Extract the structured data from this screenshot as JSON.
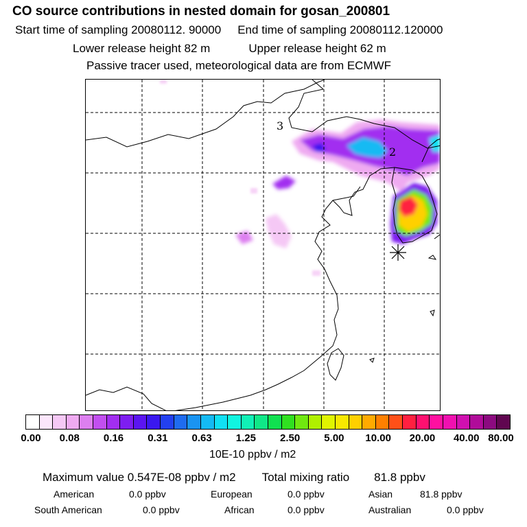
{
  "header": {
    "title": "CO  source contributions in nested domain for gosan_200801",
    "start_label": "Start time of sampling 20080112. 90000",
    "end_label": "End time of sampling 20080112.120000",
    "lower_label": "Lower release height   82 m",
    "upper_label": "Upper release height   62 m",
    "tracer_note": "Passive tracer used, meteorological data are from ECMWF"
  },
  "map": {
    "labels": [
      "3",
      "2"
    ],
    "marker": "receptor-star",
    "colors": {
      "border": "#000000",
      "grid": "#000000"
    }
  },
  "colorbar": {
    "swatches": [
      "#ffffff",
      "#fbe6fb",
      "#f5c8f5",
      "#efaaf1",
      "#dd7ff0",
      "#c24ff0",
      "#a22ef0",
      "#7e1ef0",
      "#5b15f0",
      "#3a18ef",
      "#2340f0",
      "#1f6cf0",
      "#1a94f2",
      "#14baf3",
      "#10e0f3",
      "#10f5e0",
      "#10f0b6",
      "#10e888",
      "#10e050",
      "#30e020",
      "#70e810",
      "#b0f000",
      "#e0f400",
      "#f8e800",
      "#ffd000",
      "#ffaa00",
      "#ff8000",
      "#ff5018",
      "#ff2040",
      "#ff1070",
      "#ff10a0",
      "#f010b0",
      "#d010b0",
      "#b00c9a",
      "#8c0a80",
      "#600650"
    ],
    "ticks": [
      "0.00",
      "0.08",
      "0.16",
      "0.31",
      "0.63",
      "1.25",
      "2.50",
      "5.00",
      "10.00",
      "20.00",
      "40.00",
      "80.00"
    ],
    "unit": "10E-10 ppbv / m2"
  },
  "summary": {
    "max_label": "Maximum value",
    "max_value": "0.547E-08 ppbv / m2",
    "total_label": "Total mixing ratio",
    "total_value": "81.8 ppbv",
    "regions": [
      {
        "name": "American",
        "value": "0.0 ppbv"
      },
      {
        "name": "European",
        "value": "0.0 ppbv"
      },
      {
        "name": "Asian",
        "value": "81.8 ppbv"
      },
      {
        "name": "South American",
        "value": "0.0 ppbv"
      },
      {
        "name": "African",
        "value": "0.0 ppbv"
      },
      {
        "name": "Australian",
        "value": "0.0 ppbv"
      }
    ]
  }
}
